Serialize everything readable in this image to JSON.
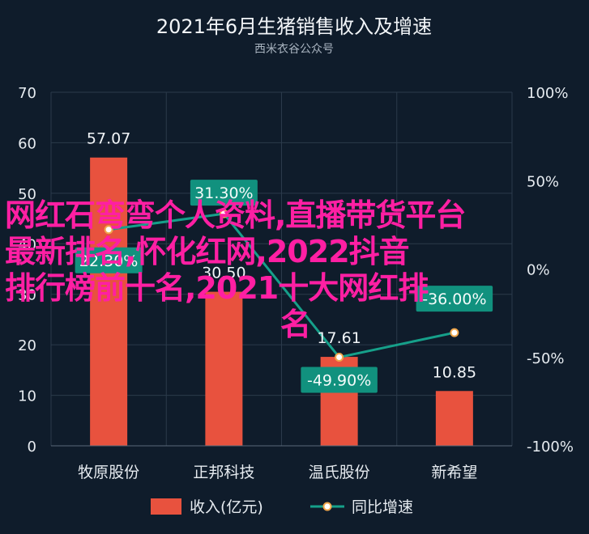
{
  "chart_data": {
    "type": "bar",
    "title": "2021年6月生猪销售收入及增速",
    "subtitle": "西米衣谷公众号",
    "categories": [
      "牧原股份",
      "正邦科技",
      "温氏股份",
      "新希望"
    ],
    "series": [
      {
        "name": "收入(亿元)",
        "type": "bar",
        "axis": "left",
        "values": [
          57.07,
          30.5,
          17.61,
          10.85
        ],
        "color": "#e8523e"
      },
      {
        "name": "同比增速",
        "type": "line",
        "axis": "right",
        "values": [
          22.3,
          31.3,
          -49.9,
          -36.0
        ],
        "color": "#16a08a"
      }
    ],
    "data_labels": {
      "bars": [
        "57.07",
        "30.50",
        "17.61",
        "10.85"
      ],
      "rates": [
        "22.30%",
        "31.30%",
        "-49.90%",
        "-36.00%"
      ]
    },
    "yaxis_left": {
      "ylim": [
        0,
        70
      ],
      "ticks": [
        "0",
        "10",
        "20",
        "30",
        "40",
        "50",
        "60",
        "70"
      ]
    },
    "yaxis_right": {
      "ylim": [
        -100,
        100
      ],
      "ticks": [
        "-100%",
        "-50%",
        "0%",
        "50%",
        "100%"
      ]
    },
    "grid": true,
    "legend_position": "bottom-center"
  },
  "watermark": {
    "lines": [
      "网红石弯弯个人资料,直播带货平台",
      "最新排名,怀化红网,2022抖音",
      "排行榜前十名,2021十大网红排",
      "名"
    ]
  }
}
